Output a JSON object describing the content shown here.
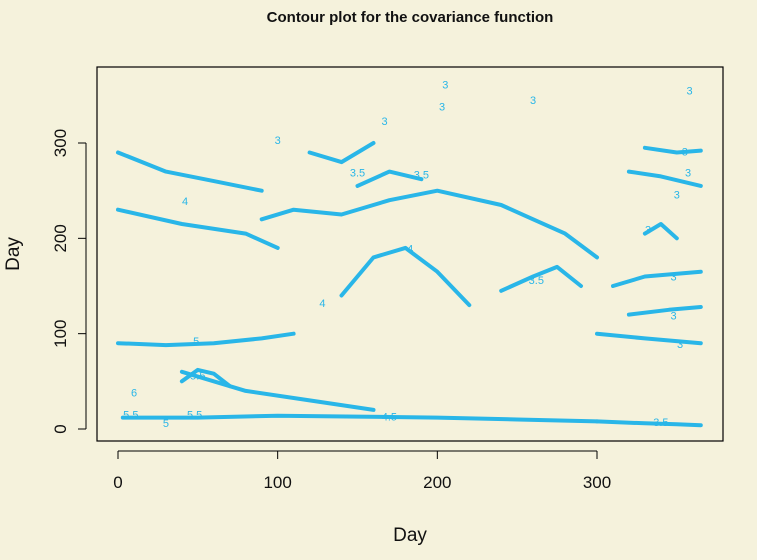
{
  "chart_data": {
    "type": "contour",
    "title": "Contour plot for the covariance function",
    "xlabel": "Day",
    "ylabel": "Day",
    "xlim": [
      -15,
      380
    ],
    "ylim": [
      -15,
      380
    ],
    "xticks": [
      0,
      100,
      200,
      300
    ],
    "yticks": [
      0,
      100,
      200,
      300
    ],
    "line_color": "#29b6e8",
    "background": "#f5f2dc",
    "levels": [
      3,
      3.5,
      4,
      4.5,
      5,
      5.5,
      6
    ],
    "contours": [
      {
        "level": 4.5,
        "x": [
          3,
          50,
          100,
          150,
          200,
          250,
          300
        ],
        "y": [
          12,
          12,
          14,
          13,
          12,
          10,
          8
        ]
      },
      {
        "level": 3.5,
        "x": [
          300,
          330,
          350,
          365
        ],
        "y": [
          8,
          6,
          5,
          4
        ]
      },
      {
        "level": 4,
        "x": [
          90,
          110,
          140,
          170,
          200,
          240,
          260,
          280,
          300
        ],
        "y": [
          220,
          230,
          225,
          240,
          250,
          235,
          220,
          205,
          180
        ]
      },
      {
        "level": 4,
        "x": [
          0,
          30,
          60,
          90
        ],
        "y": [
          290,
          270,
          260,
          250
        ]
      },
      {
        "level": 4,
        "x": [
          0,
          40,
          80,
          100
        ],
        "y": [
          230,
          215,
          205,
          190
        ]
      },
      {
        "level": 5,
        "x": [
          0,
          30,
          60,
          90,
          110
        ],
        "y": [
          90,
          88,
          90,
          95,
          100
        ]
      },
      {
        "level": 5.5,
        "x": [
          40,
          50,
          60,
          70
        ],
        "y": [
          50,
          62,
          58,
          45
        ]
      },
      {
        "level": 5,
        "x": [
          40,
          80,
          120,
          160
        ],
        "y": [
          60,
          40,
          30,
          20
        ]
      },
      {
        "level": 3,
        "x": [
          300,
          330,
          365
        ],
        "y": [
          100,
          95,
          90
        ]
      },
      {
        "level": 3,
        "x": [
          320,
          345,
          365
        ],
        "y": [
          120,
          125,
          128
        ]
      },
      {
        "level": 3,
        "x": [
          310,
          330,
          365
        ],
        "y": [
          150,
          160,
          165
        ]
      },
      {
        "level": 3,
        "x": [
          320,
          340,
          365
        ],
        "y": [
          270,
          265,
          255
        ]
      },
      {
        "level": 3,
        "x": [
          330,
          350,
          365
        ],
        "y": [
          295,
          290,
          292
        ]
      },
      {
        "level": 3,
        "x": [
          120,
          140,
          160
        ],
        "y": [
          290,
          280,
          300
        ]
      },
      {
        "level": 4,
        "x": [
          140,
          160,
          180,
          200,
          220
        ],
        "y": [
          140,
          180,
          190,
          165,
          130
        ]
      },
      {
        "level": 3.5,
        "x": [
          150,
          170,
          190
        ],
        "y": [
          255,
          270,
          262
        ]
      },
      {
        "level": 3.5,
        "x": [
          240,
          260,
          275,
          290
        ],
        "y": [
          145,
          160,
          170,
          150
        ]
      },
      {
        "level": 3,
        "x": [
          330,
          340,
          350
        ],
        "y": [
          205,
          215,
          200
        ]
      }
    ],
    "contour_labels": [
      {
        "text": "3",
        "x": 100,
        "y": 302
      },
      {
        "text": "3",
        "x": 167,
        "y": 322
      },
      {
        "text": "3",
        "x": 205,
        "y": 360
      },
      {
        "text": "3",
        "x": 203,
        "y": 337
      },
      {
        "text": "3",
        "x": 260,
        "y": 344
      },
      {
        "text": "3",
        "x": 358,
        "y": 354
      },
      {
        "text": "3.5",
        "x": 150,
        "y": 268
      },
      {
        "text": "3.5",
        "x": 190,
        "y": 266
      },
      {
        "text": "3",
        "x": 355,
        "y": 290
      },
      {
        "text": "3",
        "x": 357,
        "y": 268
      },
      {
        "text": "3",
        "x": 350,
        "y": 245
      },
      {
        "text": "3",
        "x": 332,
        "y": 208
      },
      {
        "text": "3",
        "x": 348,
        "y": 159
      },
      {
        "text": "3",
        "x": 348,
        "y": 118
      },
      {
        "text": "3",
        "x": 352,
        "y": 88
      },
      {
        "text": "4",
        "x": 42,
        "y": 238
      },
      {
        "text": "4",
        "x": 183,
        "y": 188
      },
      {
        "text": "4",
        "x": 128,
        "y": 131
      },
      {
        "text": "3.5",
        "x": 262,
        "y": 155
      },
      {
        "text": "5",
        "x": 49,
        "y": 91
      },
      {
        "text": "5.5",
        "x": 50,
        "y": 55
      },
      {
        "text": "5.5",
        "x": 48,
        "y": 14
      },
      {
        "text": "4.5",
        "x": 170,
        "y": 12
      },
      {
        "text": "3.5",
        "x": 340,
        "y": 6
      },
      {
        "text": "6",
        "x": 10,
        "y": 37
      },
      {
        "text": "5.5",
        "x": 8,
        "y": 14
      },
      {
        "text": "5",
        "x": 30,
        "y": 5
      }
    ]
  }
}
